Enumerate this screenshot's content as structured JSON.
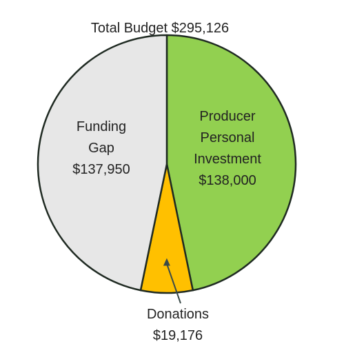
{
  "chart_data": {
    "type": "pie",
    "title": "Total Budget $295,126",
    "total": 295126,
    "slices": [
      {
        "name": "Producer Personal Investment",
        "value": 138000,
        "value_label": "$138,000",
        "label_lines": [
          "Producer",
          "Personal",
          "Investment"
        ],
        "color": "#92d050"
      },
      {
        "name": "Donations",
        "value": 19176,
        "value_label": "$19,176",
        "label_lines": [
          "Donations"
        ],
        "color": "#ffc000"
      },
      {
        "name": "Funding Gap",
        "value": 137950,
        "value_label": "$137,950",
        "label_lines": [
          "Funding",
          "Gap"
        ],
        "color": "#e7e7e7"
      }
    ],
    "start_angle": "12 o'clock",
    "direction": "clockwise",
    "legend": "none",
    "outline_color": "#1f2a22"
  }
}
